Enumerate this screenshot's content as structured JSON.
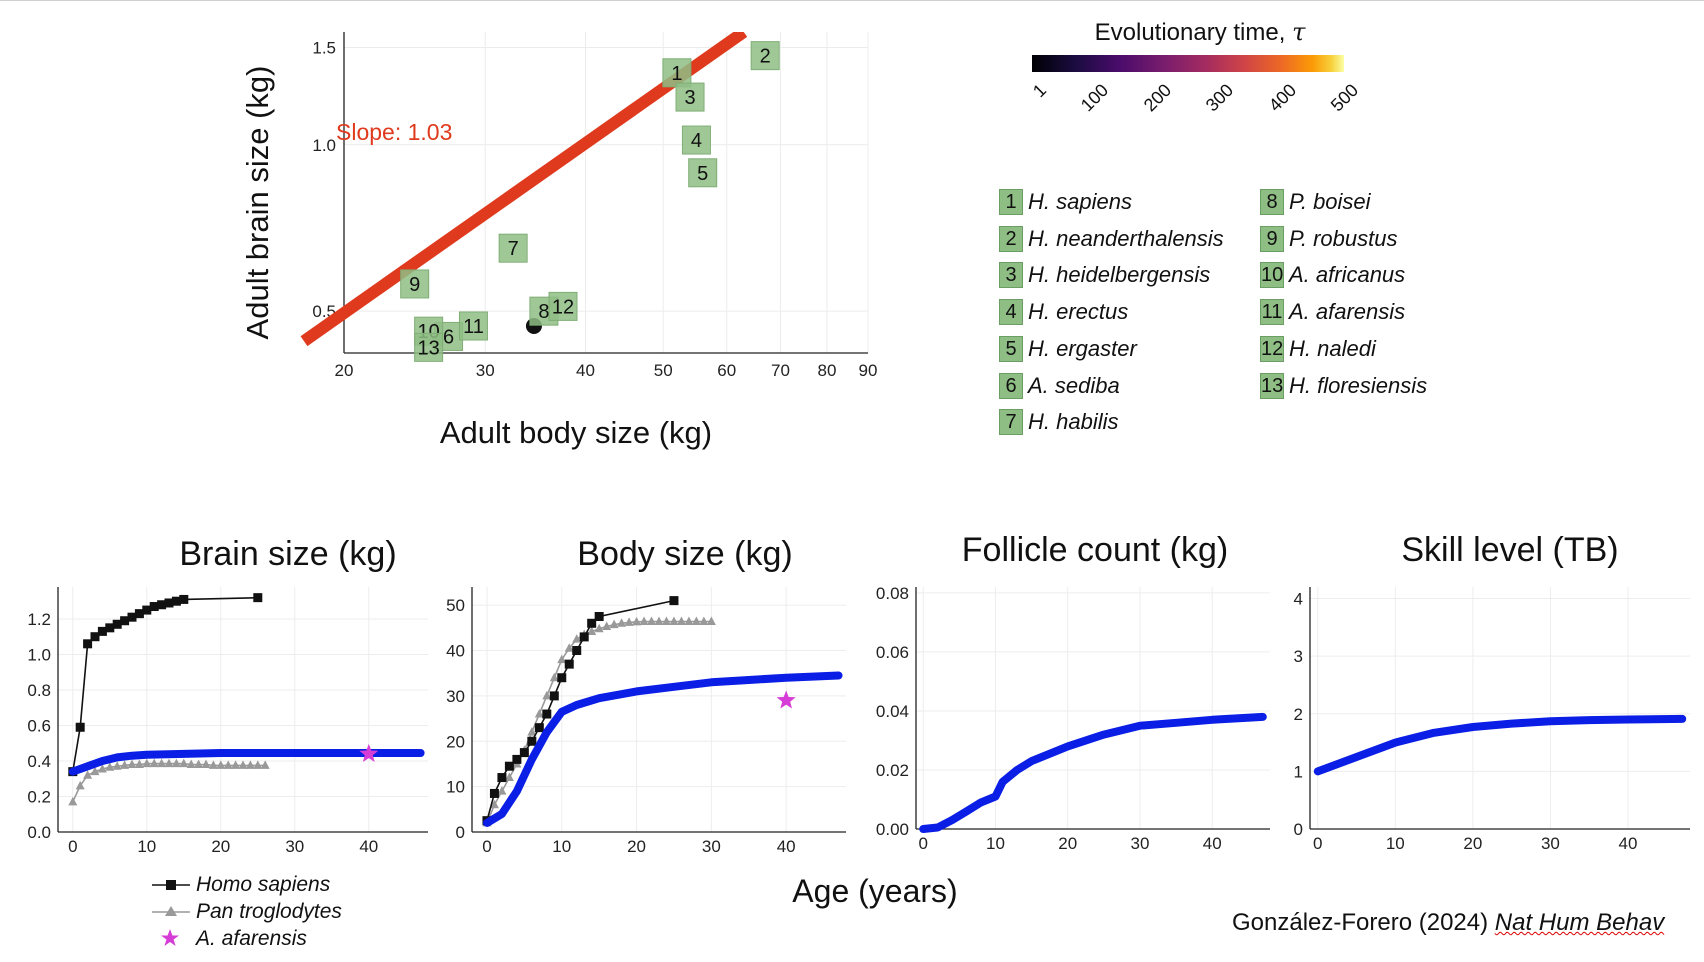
{
  "colorbar": {
    "title": "Evolutionary time, ",
    "title_symbol": "τ",
    "ticks": [
      "1",
      "100",
      "200",
      "300",
      "400",
      "500"
    ]
  },
  "colors": {
    "model": "#0a1ee6",
    "homo": "#111111",
    "pan": "#999999",
    "afarensis": "#d63cd6",
    "fit": "#e03a1e",
    "marker": "#8fbe85"
  },
  "species_legend": [
    {
      "num": "1",
      "name": "H. sapiens"
    },
    {
      "num": "2",
      "name": "H. neanderthalensis"
    },
    {
      "num": "3",
      "name": "H. heidelbergensis"
    },
    {
      "num": "4",
      "name": "H. erectus"
    },
    {
      "num": "5",
      "name": "H. ergaster"
    },
    {
      "num": "6",
      "name": "A. sediba"
    },
    {
      "num": "7",
      "name": "H. habilis"
    },
    {
      "num": "8",
      "name": "P. boisei"
    },
    {
      "num": "9",
      "name": "P. robustus"
    },
    {
      "num": "10",
      "name": "A. africanus"
    },
    {
      "num": "11",
      "name": "A. afarensis"
    },
    {
      "num": "12",
      "name": "H. naledi"
    },
    {
      "num": "13",
      "name": "H. floresiensis"
    }
  ],
  "bottom_legend": [
    "Homo sapiens",
    "Pan troglodytes",
    "A. afarensis"
  ],
  "shared_xlabel": "Age (years)",
  "credit": {
    "text": "González-Forero (2024) ",
    "journal": "Nat Hum Behav"
  },
  "chart_data": [
    {
      "type": "scatter",
      "xlabel": "Adult body size (kg)",
      "ylabel": "Adult brain size (kg)",
      "xscale": "log",
      "yscale": "log",
      "xlim": [
        20,
        90
      ],
      "ylim": [
        0.42,
        1.6
      ],
      "xticks": [
        20,
        30,
        40,
        50,
        60,
        70,
        80,
        90
      ],
      "yticks": [
        0.5,
        1.0,
        1.5
      ],
      "annotation": "Slope: 1.03",
      "fit_line": {
        "slope": 1.03,
        "x": [
          20,
          63
        ],
        "y": [
          0.5,
          1.6
        ]
      },
      "model_point": {
        "x": 34.5,
        "y": 0.47
      },
      "points": [
        {
          "label": "1",
          "x": 52,
          "y": 1.35
        },
        {
          "label": "2",
          "x": 67,
          "y": 1.45
        },
        {
          "label": "3",
          "x": 54,
          "y": 1.22
        },
        {
          "label": "4",
          "x": 55,
          "y": 1.02
        },
        {
          "label": "5",
          "x": 56,
          "y": 0.89
        },
        {
          "label": "6",
          "x": 27,
          "y": 0.45
        },
        {
          "label": "7",
          "x": 32.5,
          "y": 0.65
        },
        {
          "label": "8",
          "x": 35.5,
          "y": 0.5
        },
        {
          "label": "9",
          "x": 24.5,
          "y": 0.56
        },
        {
          "label": "10",
          "x": 25.5,
          "y": 0.46
        },
        {
          "label": "11",
          "x": 29,
          "y": 0.47
        },
        {
          "label": "12",
          "x": 37.5,
          "y": 0.51
        },
        {
          "label": "13",
          "x": 25.5,
          "y": 0.43
        }
      ]
    },
    {
      "type": "line",
      "title": "Brain size (kg)",
      "xlim": [
        -2,
        48
      ],
      "ylim": [
        0,
        1.38
      ],
      "xticks": [
        0,
        10,
        20,
        30,
        40
      ],
      "yticks": [
        0.0,
        0.2,
        0.4,
        0.6,
        0.8,
        1.0,
        1.2
      ],
      "ytick_labels": [
        "0.0",
        "0.2",
        "0.4",
        "0.6",
        "0.8",
        "1.0",
        "1.2"
      ],
      "series": [
        {
          "name": "Homo sapiens",
          "style": "homo",
          "x": [
            0,
            1,
            2,
            3,
            4,
            5,
            6,
            7,
            8,
            9,
            10,
            11,
            12,
            13,
            14,
            15,
            25
          ],
          "y": [
            0.34,
            0.59,
            1.06,
            1.1,
            1.13,
            1.15,
            1.17,
            1.19,
            1.21,
            1.23,
            1.25,
            1.27,
            1.28,
            1.29,
            1.3,
            1.31,
            1.32
          ]
        },
        {
          "name": "Pan troglodytes",
          "style": "pan",
          "x": [
            0,
            1,
            2,
            3,
            4,
            5,
            6,
            7,
            8,
            9,
            10,
            11,
            12,
            13,
            14,
            15,
            16,
            17,
            18,
            19,
            20,
            21,
            22,
            23,
            24,
            25,
            26
          ],
          "y": [
            0.17,
            0.26,
            0.32,
            0.34,
            0.355,
            0.365,
            0.37,
            0.375,
            0.38,
            0.38,
            0.385,
            0.385,
            0.385,
            0.385,
            0.385,
            0.385,
            0.38,
            0.38,
            0.38,
            0.375,
            0.375,
            0.375,
            0.375,
            0.375,
            0.375,
            0.375,
            0.375
          ]
        },
        {
          "name": "model",
          "style": "model",
          "x": [
            0,
            2,
            4,
            6,
            8,
            10,
            15,
            20,
            30,
            40,
            47
          ],
          "y": [
            0.34,
            0.37,
            0.4,
            0.42,
            0.43,
            0.435,
            0.44,
            0.445,
            0.445,
            0.445,
            0.445
          ]
        },
        {
          "name": "A. afarensis",
          "style": "star",
          "x": [
            40
          ],
          "y": [
            0.44
          ]
        }
      ]
    },
    {
      "type": "line",
      "title": "Body size (kg)",
      "xlim": [
        -2,
        48
      ],
      "ylim": [
        0,
        54
      ],
      "xticks": [
        0,
        10,
        20,
        30,
        40
      ],
      "yticks": [
        0,
        10,
        20,
        30,
        40,
        50
      ],
      "ytick_labels": [
        "0",
        "10",
        "20",
        "30",
        "40",
        "50"
      ],
      "series": [
        {
          "name": "Homo sapiens",
          "style": "homo",
          "x": [
            0,
            1,
            2,
            3,
            4,
            5,
            6,
            7,
            8,
            9,
            10,
            11,
            12,
            13,
            14,
            15,
            25
          ],
          "y": [
            2.5,
            8.5,
            12,
            14.5,
            16,
            17.5,
            20,
            23,
            26,
            30,
            34,
            37,
            40,
            43,
            46,
            47.5,
            51
          ]
        },
        {
          "name": "Pan troglodytes",
          "style": "pan",
          "x": [
            0,
            1,
            2,
            3,
            4,
            5,
            6,
            7,
            8,
            9,
            10,
            11,
            12,
            13,
            14,
            15,
            16,
            17,
            18,
            19,
            20,
            21,
            22,
            23,
            24,
            25,
            26,
            27,
            28,
            29,
            30
          ],
          "y": [
            2,
            6,
            9,
            12,
            15,
            18,
            22,
            26,
            30,
            34,
            38,
            40.5,
            42.5,
            43.5,
            44.2,
            44.8,
            45.3,
            45.7,
            46,
            46.2,
            46.3,
            46.4,
            46.4,
            46.4,
            46.4,
            46.4,
            46.4,
            46.4,
            46.4,
            46.4,
            46.4
          ]
        },
        {
          "name": "model",
          "style": "model",
          "x": [
            0,
            2,
            4,
            6,
            8,
            10,
            12,
            15,
            20,
            25,
            30,
            35,
            40,
            47
          ],
          "y": [
            2,
            4,
            9,
            16,
            22,
            26.5,
            28,
            29.5,
            31,
            32,
            33,
            33.5,
            34,
            34.5
          ]
        },
        {
          "name": "A. afarensis",
          "style": "star",
          "x": [
            40
          ],
          "y": [
            29
          ]
        }
      ]
    },
    {
      "type": "line",
      "title": "Follicle count (kg)",
      "xlim": [
        -1,
        48
      ],
      "ylim": [
        0,
        0.082
      ],
      "xticks": [
        0,
        10,
        20,
        30,
        40
      ],
      "yticks": [
        0.0,
        0.02,
        0.04,
        0.06,
        0.08
      ],
      "ytick_labels": [
        "0.00",
        "0.02",
        "0.04",
        "0.06",
        "0.08"
      ],
      "series": [
        {
          "name": "model",
          "style": "model",
          "x": [
            0,
            2,
            4,
            6,
            8,
            10,
            11,
            13,
            15,
            20,
            25,
            30,
            35,
            40,
            47
          ],
          "y": [
            0,
            0.0005,
            0.003,
            0.006,
            0.009,
            0.011,
            0.016,
            0.02,
            0.023,
            0.028,
            0.032,
            0.035,
            0.036,
            0.037,
            0.038
          ]
        }
      ]
    },
    {
      "type": "line",
      "title": "Skill level (TB)",
      "xlim": [
        -1,
        48
      ],
      "ylim": [
        0,
        4.2
      ],
      "xticks": [
        0,
        10,
        20,
        30,
        40
      ],
      "yticks": [
        0,
        1,
        2,
        3,
        4
      ],
      "ytick_labels": [
        "0",
        "1",
        "2",
        "3",
        "4"
      ],
      "series": [
        {
          "name": "model",
          "style": "model",
          "x": [
            0,
            5,
            10,
            15,
            20,
            25,
            30,
            35,
            40,
            47
          ],
          "y": [
            1.0,
            1.25,
            1.5,
            1.67,
            1.77,
            1.83,
            1.87,
            1.89,
            1.9,
            1.91
          ]
        }
      ]
    }
  ]
}
